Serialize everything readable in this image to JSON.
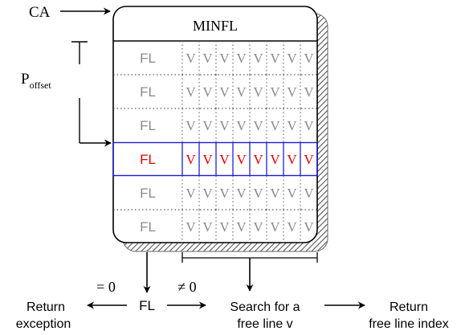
{
  "labels": {
    "ca": "CA",
    "table_title": "MINFL",
    "poffset_main": "P",
    "poffset_sub": "offset",
    "eq_zero": "= 0",
    "neq_zero": "≠ 0",
    "fl_bottom": "FL",
    "return_exception_1": "Return",
    "return_exception_2": "exception",
    "search_1": "Search for a",
    "search_2": "free line v",
    "return_index_1": "Return",
    "return_index_2": "free line index"
  },
  "rows": [
    {
      "fl": "FL",
      "cells": [
        "V",
        "V",
        "V",
        "V",
        "V",
        "V",
        "V",
        "V"
      ],
      "highlight": false
    },
    {
      "fl": "FL",
      "cells": [
        "V",
        "V",
        "V",
        "V",
        "V",
        "V",
        "V",
        "V"
      ],
      "highlight": false
    },
    {
      "fl": "FL",
      "cells": [
        "V",
        "V",
        "V",
        "V",
        "V",
        "V",
        "V",
        "V"
      ],
      "highlight": false
    },
    {
      "fl": "FL",
      "cells": [
        "V",
        "V",
        "V",
        "V",
        "V",
        "V",
        "V",
        "V"
      ],
      "highlight": true
    },
    {
      "fl": "FL",
      "cells": [
        "V",
        "V",
        "V",
        "V",
        "V",
        "V",
        "V",
        "V"
      ],
      "highlight": false
    },
    {
      "fl": "FL",
      "cells": [
        "V",
        "V",
        "V",
        "V",
        "V",
        "V",
        "V",
        "V"
      ],
      "highlight": false
    }
  ],
  "colors": {
    "gray_text": "#8a8a8a",
    "highlight_text": "#e00000",
    "highlight_border": "#1f1fd0",
    "line": "#000000"
  }
}
